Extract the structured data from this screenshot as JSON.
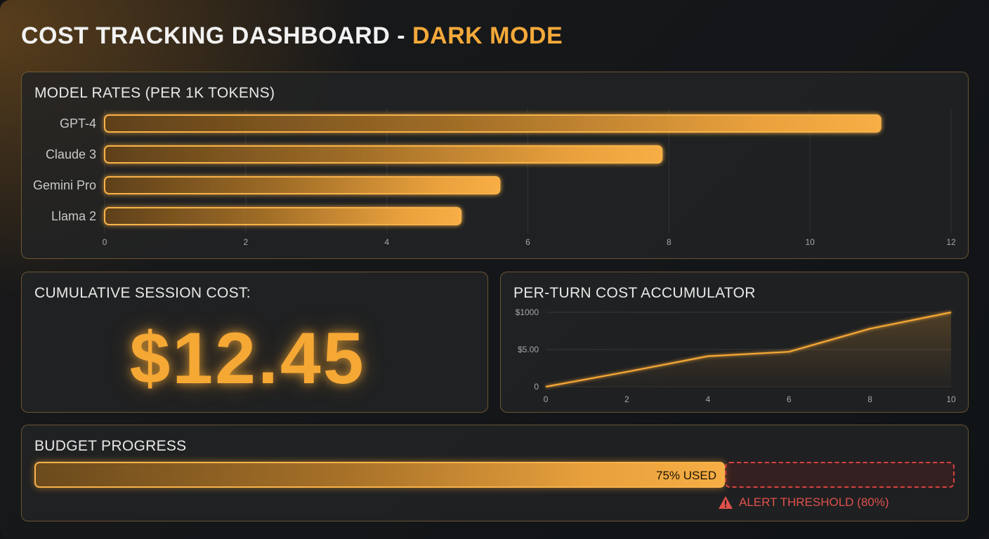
{
  "page": {
    "title_main": "COST TRACKING DASHBOARD - ",
    "title_accent": "DARK MODE"
  },
  "colors": {
    "accent": "#f6a835",
    "alert": "#e0514c",
    "panel_border": "#c89646"
  },
  "model_rates": {
    "title": "MODEL RATES (PER 1K TOKENS)",
    "chart_data": {
      "type": "bar",
      "orientation": "horizontal",
      "categories": [
        "GPT-4",
        "Claude 3",
        "Gemini Pro",
        "Llama 2"
      ],
      "values": [
        11.0,
        7.9,
        5.6,
        5.05
      ],
      "xticks": [
        "0",
        "2",
        "4",
        "6",
        "8",
        "10",
        "12"
      ],
      "xlim": [
        0,
        12
      ],
      "grid": true
    }
  },
  "session": {
    "title": "CUMULATIVE SESSION COST:",
    "value": "$12.45"
  },
  "per_turn": {
    "title": "PER-TURN COST ACCUMULATOR",
    "chart_data": {
      "type": "area",
      "x": [
        0,
        2,
        4,
        6,
        8,
        10
      ],
      "y": [
        0,
        0.2,
        0.41,
        0.47,
        0.78,
        1.0
      ],
      "xticks": [
        "0",
        "2",
        "4",
        "6",
        "8",
        "10"
      ],
      "yticks": [
        "0",
        "$5.00",
        "$1000"
      ],
      "xlim": [
        0,
        10
      ],
      "ylim": [
        0,
        1
      ],
      "grid": true
    }
  },
  "budget": {
    "title": "BUDGET PROGRESS",
    "used_fraction": 0.75,
    "used_label": "75% USED",
    "alert_fraction": 0.8,
    "alert_label": "ALERT THRESHOLD (80%)",
    "alert_icon": "warning-triangle-icon"
  }
}
